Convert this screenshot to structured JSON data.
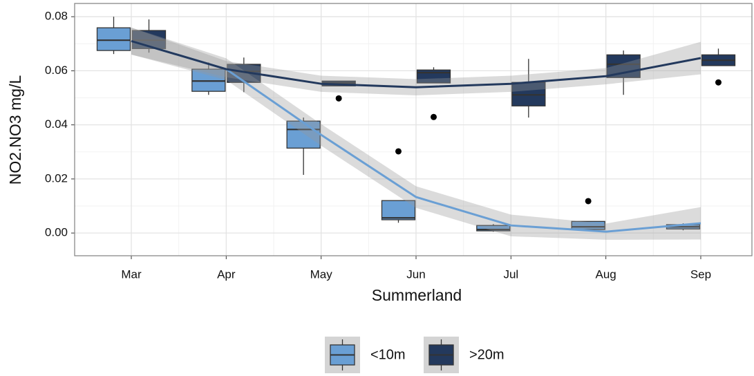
{
  "chart_data": {
    "type": "box",
    "xlabel": "Summerland",
    "ylabel": "NO2.NO3   mg/L",
    "categories": [
      "Mar",
      "Apr",
      "May",
      "Jun",
      "Jul",
      "Aug",
      "Sep"
    ],
    "ylim": [
      -0.0084,
      0.0849
    ],
    "yticks": [
      {
        "value": 0,
        "label": "0.00"
      },
      0.02,
      0.04,
      0.06,
      0.08
    ],
    "grid": true,
    "legend": "bottom",
    "series": [
      {
        "name": "<10m",
        "color": "#6a9fd4",
        "line_color": "#6a9fd4",
        "min": [
          0.0662,
          0.0511,
          0.0215,
          0.0038,
          0.0005,
          0.0008,
          0.001
        ],
        "q1": [
          0.0675,
          0.0524,
          0.0314,
          0.0049,
          0.0008,
          0.0013,
          0.0015
        ],
        "median": [
          0.0713,
          0.0562,
          0.0383,
          0.0056,
          0.0013,
          0.0023,
          0.0023
        ],
        "q3": [
          0.0759,
          0.0606,
          0.0414,
          0.012,
          0.0028,
          0.0043,
          0.0031
        ],
        "max": [
          0.08,
          0.0631,
          0.0427,
          0.012,
          0.0033,
          0.0043,
          0.0036
        ],
        "outliers": [
          [],
          [],
          [],
          [
            0.0302
          ],
          [],
          [
            0.0118
          ],
          []
        ],
        "smooth": [
          0.071,
          0.0606,
          0.0363,
          0.0133,
          0.0028,
          0.0005,
          0.0036
        ],
        "smooth_lower": [
          0.066,
          0.0566,
          0.0323,
          0.0093,
          -0.0012,
          -0.0025,
          -0.0024
        ],
        "smooth_upper": [
          0.076,
          0.0646,
          0.0403,
          0.0173,
          0.0068,
          0.0035,
          0.0096
        ]
      },
      {
        "name": ">20m",
        "color": "#23395d",
        "line_color": "#23395d",
        "min": [
          0.0667,
          0.0521,
          0.0544,
          0.0555,
          0.0427,
          0.0511,
          0.0619
        ],
        "q1": [
          0.0682,
          0.0557,
          0.0544,
          0.0555,
          0.047,
          0.0575,
          0.0619
        ],
        "median": [
          0.0713,
          0.0598,
          0.0555,
          0.0593,
          0.0511,
          0.0624,
          0.0639
        ],
        "q3": [
          0.0749,
          0.0624,
          0.0562,
          0.0603,
          0.0557,
          0.0659,
          0.0659
        ],
        "max": [
          0.079,
          0.0649,
          0.0562,
          0.0613,
          0.0644,
          0.0675,
          0.0682
        ],
        "outliers": [
          [],
          [],
          [
            0.0498
          ],
          [
            0.0429
          ],
          [],
          [],
          [
            0.0557
          ]
        ],
        "smooth": [
          0.071,
          0.0606,
          0.0552,
          0.0539,
          0.0552,
          0.058,
          0.0647
        ],
        "smooth_lower": [
          0.066,
          0.0576,
          0.0522,
          0.0509,
          0.0522,
          0.055,
          0.0587
        ],
        "smooth_upper": [
          0.076,
          0.0636,
          0.0582,
          0.0569,
          0.0582,
          0.061,
          0.0707
        ]
      }
    ]
  }
}
